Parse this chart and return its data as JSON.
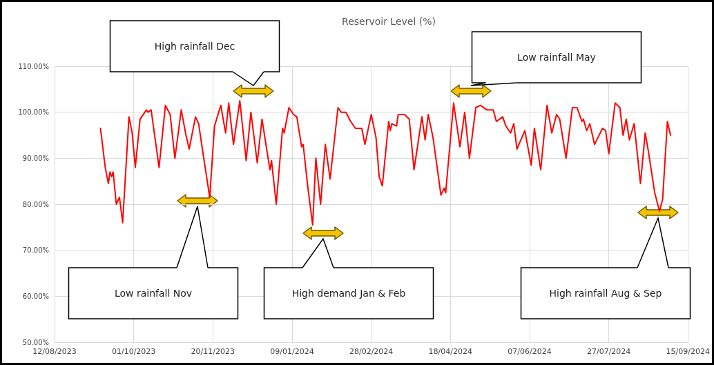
{
  "chart_data": {
    "type": "line",
    "title": "Reservoir Level (%)",
    "x": [
      "2023-09-10",
      "2023-09-13",
      "2023-09-15",
      "2023-09-16",
      "2023-09-17",
      "2023-09-18",
      "2023-09-20",
      "2023-09-22",
      "2023-09-24",
      "2023-09-28",
      "2023-09-30",
      "2023-10-02",
      "2023-10-05",
      "2023-10-09",
      "2023-10-10",
      "2023-10-12",
      "2023-10-17",
      "2023-10-21",
      "2023-10-24",
      "2023-10-27",
      "2023-10-31",
      "2023-11-03",
      "2023-11-05",
      "2023-11-09",
      "2023-11-11",
      "2023-11-14",
      "2023-11-18",
      "2023-11-21",
      "2023-11-25",
      "2023-11-28",
      "2023-11-30",
      "2023-12-03",
      "2023-12-07",
      "2023-12-11",
      "2023-12-14",
      "2023-12-18",
      "2023-12-21",
      "2023-12-26",
      "2023-12-27",
      "2023-12-30",
      "2024-01-03",
      "2024-01-04",
      "2024-01-07",
      "2024-01-10",
      "2024-01-12",
      "2024-01-15",
      "2024-01-16",
      "2024-01-19",
      "2024-01-22",
      "2024-01-24",
      "2024-01-27",
      "2024-01-30",
      "2024-02-02",
      "2024-02-07",
      "2024-02-09",
      "2024-02-12",
      "2024-02-15",
      "2024-02-18",
      "2024-02-22",
      "2024-02-24",
      "2024-02-28",
      "2024-03-02",
      "2024-03-04",
      "2024-03-06",
      "2024-03-10",
      "2024-03-11",
      "2024-03-12",
      "2024-03-15",
      "2024-03-16",
      "2024-03-20",
      "2024-03-23",
      "2024-03-26",
      "2024-03-31",
      "2024-04-02",
      "2024-04-04",
      "2024-04-07",
      "2024-04-12",
      "2024-04-14",
      "2024-04-15",
      "2024-04-20",
      "2024-04-24",
      "2024-04-27",
      "2024-04-30",
      "2024-05-04",
      "2024-05-07",
      "2024-05-11",
      "2024-05-15",
      "2024-05-17",
      "2024-05-21",
      "2024-05-23",
      "2024-05-26",
      "2024-05-28",
      "2024-05-30",
      "2024-06-04",
      "2024-06-08",
      "2024-06-10",
      "2024-06-14",
      "2024-06-18",
      "2024-06-21",
      "2024-06-24",
      "2024-06-26",
      "2024-06-30",
      "2024-07-04",
      "2024-07-07",
      "2024-07-10",
      "2024-07-11",
      "2024-07-13",
      "2024-07-15",
      "2024-07-18",
      "2024-07-23",
      "2024-07-25",
      "2024-07-27",
      "2024-07-31",
      "2024-08-03",
      "2024-08-05",
      "2024-08-07",
      "2024-08-09",
      "2024-08-12",
      "2024-08-16",
      "2024-08-19",
      "2024-08-21",
      "2024-08-25",
      "2024-08-28",
      "2024-08-30",
      "2024-09-02",
      "2024-09-04"
    ],
    "series": [
      {
        "color": "#ff0000",
        "values": [
          96.5,
          88,
          84.5,
          87,
          86,
          87,
          80,
          81.5,
          76,
          99,
          95.5,
          88,
          98.5,
          100.5,
          100,
          100.5,
          88,
          101.5,
          99.5,
          90,
          100.5,
          95,
          92,
          99,
          97.5,
          90.5,
          81.5,
          97,
          101.5,
          95.5,
          102,
          93,
          102.5,
          89.5,
          100,
          89,
          98.5,
          87.5,
          89.5,
          80,
          96.5,
          95.5,
          101,
          99.5,
          99,
          92.5,
          93,
          83.5,
          75.5,
          90,
          80,
          93,
          85.5,
          101,
          100,
          100,
          98,
          96.5,
          96.5,
          93,
          99.5,
          94.5,
          86,
          84,
          98,
          96,
          97.5,
          97,
          99.5,
          99.5,
          98.5,
          87.5,
          99,
          94,
          99.5,
          94.5,
          82,
          83.5,
          82.5,
          102,
          92.5,
          100,
          90,
          101,
          101.5,
          100.5,
          100.5,
          98,
          99,
          97,
          95.5,
          97.5,
          92,
          96,
          88.5,
          96.5,
          87.5,
          101.5,
          95.5,
          99.5,
          98.5,
          90,
          101,
          101,
          98,
          98.5,
          96,
          97.5,
          93,
          96.5,
          96,
          91,
          102,
          101,
          95,
          98.5,
          94,
          97.5,
          84.5,
          95.5,
          91.5,
          82.5,
          78.5,
          81,
          98,
          95
        ]
      }
    ],
    "xlim": [
      "2023-08-12",
      "2024-09-15"
    ],
    "xticks": [
      {
        "value": "2023-08-12",
        "label": "12/08/2023"
      },
      {
        "value": "2023-10-01",
        "label": "01/10/2023"
      },
      {
        "value": "2023-11-20",
        "label": "20/11/2023"
      },
      {
        "value": "2024-01-09",
        "label": "09/01/2024"
      },
      {
        "value": "2024-02-28",
        "label": "28/02/2024"
      },
      {
        "value": "2024-04-18",
        "label": "18/04/2024"
      },
      {
        "value": "2024-06-07",
        "label": "07/06/2024"
      },
      {
        "value": "2024-07-27",
        "label": "27/07/2024"
      },
      {
        "value": "2024-09-15",
        "label": "15/09/2024"
      }
    ],
    "ylim": [
      50,
      110
    ],
    "yticks": [
      {
        "value": 50,
        "label": "50.00%"
      },
      {
        "value": 60,
        "label": "60.00%"
      },
      {
        "value": 70,
        "label": "70.00%"
      },
      {
        "value": 80,
        "label": "80.00%"
      },
      {
        "value": 90,
        "label": "90.00%"
      },
      {
        "value": 100,
        "label": "100.00%"
      },
      {
        "value": 110,
        "label": "110.00%"
      }
    ],
    "grid": true,
    "marker": "none",
    "line_style": "solid",
    "annotations": [
      "High rainfall Dec",
      "Low rainfall May",
      "Low rainfall Nov",
      "High demand Jan & Feb",
      "High rainfall Aug & Sep"
    ]
  }
}
